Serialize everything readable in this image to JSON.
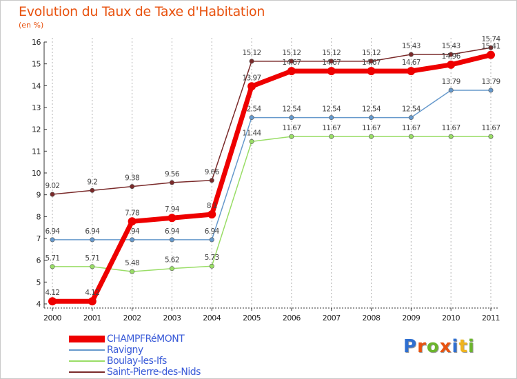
{
  "title": "Evolution du Taux de Taxe d'Habitation",
  "unit_label": "(en %)",
  "logo": {
    "letters": [
      "P",
      "r",
      "o",
      "x",
      "i",
      "t",
      "i"
    ],
    "colors": [
      "#2f6fd0",
      "#e8520f",
      "#6bb52c",
      "#e8520f",
      "#2f6fd0",
      "#f0b41e",
      "#6bb52c"
    ]
  },
  "chart_data": {
    "type": "line",
    "title": "Evolution du Taux de Taxe d'Habitation",
    "ylabel": "(en %)",
    "xlabel": "",
    "ylim": [
      4,
      16
    ],
    "yticks": [
      "4",
      "5",
      "6",
      "7",
      "8",
      "9",
      "10",
      "11",
      "12",
      "13",
      "14",
      "15",
      "16"
    ],
    "x": [
      "2000",
      "2001",
      "2002",
      "2003",
      "2004",
      "2005",
      "2006",
      "2007",
      "2008",
      "2009",
      "2010",
      "2011"
    ],
    "series": [
      {
        "name": "Saint-Pierre-des-Nids",
        "color": "#7a2a2a",
        "width": 1.5,
        "values": [
          9.02,
          9.2,
          9.38,
          9.56,
          9.66,
          15.12,
          15.12,
          15.12,
          15.12,
          15.43,
          15.43,
          15.74
        ],
        "labels": [
          "9.02",
          "9.2",
          "9.38",
          "9.56",
          "9.66",
          "15.12",
          "15.12",
          "15.12",
          "15.12",
          "15.43",
          "15.43",
          "15.74"
        ]
      },
      {
        "name": "Boulay-les-Ifs",
        "color": "#99dd66",
        "width": 1.5,
        "values": [
          5.71,
          5.71,
          5.48,
          5.62,
          5.73,
          11.44,
          11.67,
          11.67,
          11.67,
          11.67,
          11.67,
          11.67
        ],
        "labels": [
          "5.71",
          "5.71",
          "5.48",
          "5.62",
          "5.73",
          "11.44",
          "11.67",
          "11.67",
          "11.67",
          "11.67",
          "11.67",
          "11.67"
        ]
      },
      {
        "name": "Ravigny",
        "color": "#6699cc",
        "width": 1.5,
        "values": [
          6.94,
          6.94,
          6.94,
          6.94,
          6.94,
          12.54,
          12.54,
          12.54,
          12.54,
          12.54,
          13.79,
          13.79
        ],
        "labels": [
          "6.94",
          "6.94",
          "6.94",
          "6.94",
          "6.94",
          "12.54",
          "12.54",
          "12.54",
          "12.54",
          "12.54",
          "13.79",
          "13.79"
        ]
      },
      {
        "name": "CHAMPFRéMONT",
        "color": "#ee0000",
        "width": 7,
        "values": [
          4.12,
          4.12,
          7.78,
          7.94,
          8.1,
          13.97,
          14.67,
          14.67,
          14.67,
          14.67,
          14.96,
          15.41
        ],
        "labels": [
          "4.12",
          "4.12",
          "7.78",
          "7.94",
          "8.1",
          "13.97",
          "14.67",
          "14.67",
          "14.67",
          "14.67",
          "14.96",
          "15.41"
        ]
      }
    ],
    "legend_order": [
      "CHAMPFRéMONT",
      "Ravigny",
      "Boulay-les-Ifs",
      "Saint-Pierre-des-Nids"
    ]
  }
}
